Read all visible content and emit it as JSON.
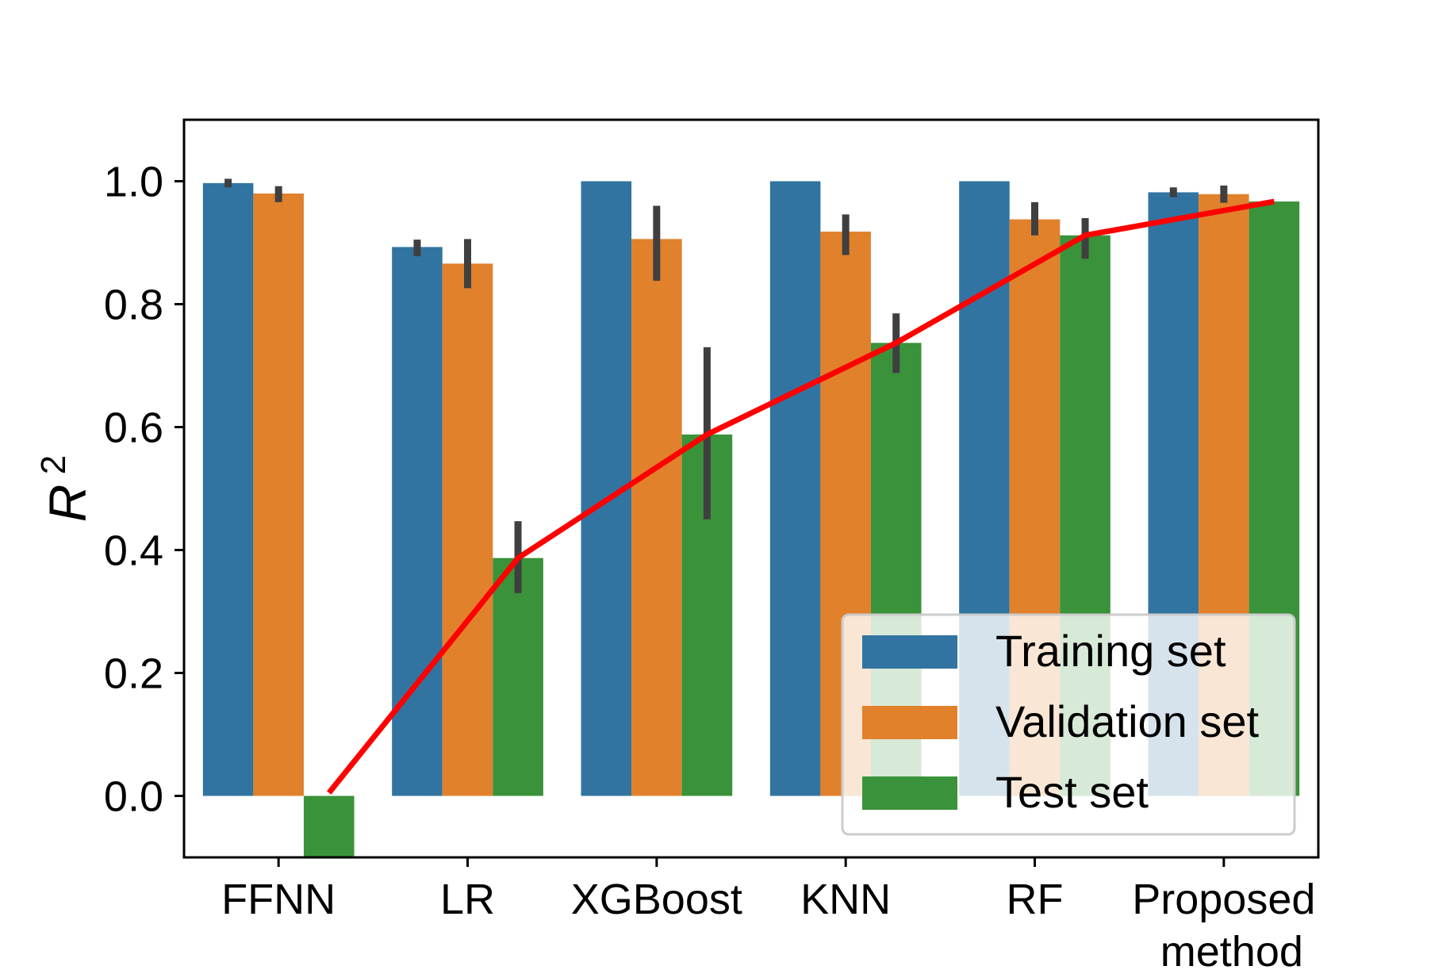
{
  "chart_data": {
    "type": "bar",
    "title": "",
    "xlabel": "",
    "ylabel": "R",
    "ylabel_superscript": "2",
    "ylim": [
      -0.1,
      1.1
    ],
    "yticks": [
      "0.0",
      "0.2",
      "0.4",
      "0.6",
      "0.8",
      "1.0"
    ],
    "ytick_values": [
      0.0,
      0.2,
      0.4,
      0.6,
      0.8,
      1.0
    ],
    "categories": [
      "FFNN",
      "LR",
      "XGBoost",
      "KNN",
      "RF",
      "Proposed method"
    ],
    "category_labels": [
      [
        "FFNN"
      ],
      [
        "LR"
      ],
      [
        "XGBoost"
      ],
      [
        "KNN"
      ],
      [
        "RF"
      ],
      [
        "Proposed",
        "method"
      ]
    ],
    "series": [
      {
        "name": "Training set",
        "color": "#3274a1",
        "values": [
          0.997,
          0.893,
          1.0,
          1.0,
          1.0,
          0.982
        ],
        "err_low": [
          0.99,
          0.878,
          null,
          null,
          null,
          0.974
        ],
        "err_high": [
          1.004,
          0.905,
          null,
          null,
          null,
          0.99
        ]
      },
      {
        "name": "Validation set",
        "color": "#e1812c",
        "values": [
          0.98,
          0.866,
          0.906,
          0.918,
          0.938,
          0.979
        ],
        "err_low": [
          0.966,
          0.826,
          0.838,
          0.88,
          0.912,
          0.965
        ],
        "err_high": [
          0.992,
          0.906,
          0.96,
          0.946,
          0.966,
          0.993
        ]
      },
      {
        "name": "Test set",
        "color": "#3a923a",
        "values": [
          -0.1,
          0.387,
          0.588,
          0.737,
          0.912,
          0.967
        ],
        "err_low": [
          null,
          0.33,
          0.45,
          0.688,
          0.874,
          null
        ],
        "err_high": [
          null,
          0.447,
          0.73,
          0.785,
          0.94,
          null
        ]
      }
    ],
    "trend_line": {
      "color": "#ff0000",
      "values": [
        0.005,
        0.387,
        0.588,
        0.737,
        0.912,
        0.967
      ]
    },
    "error_bar_color": "#3f3f3f",
    "legend": {
      "placement": "lower-right"
    },
    "grid": false
  }
}
